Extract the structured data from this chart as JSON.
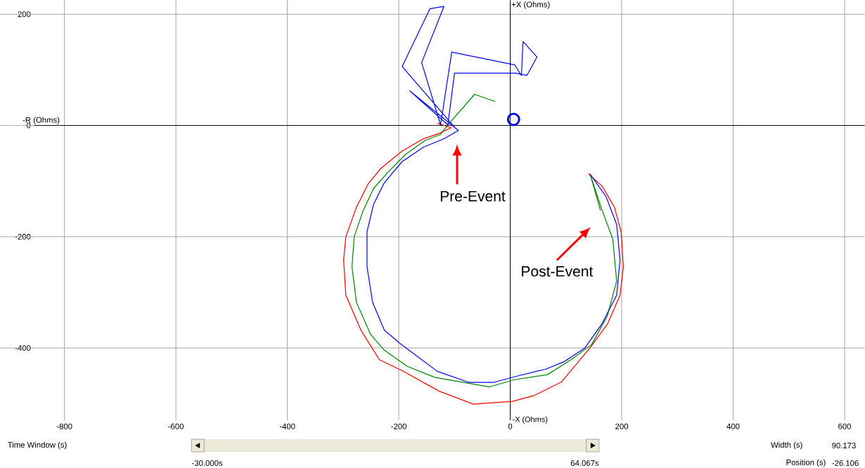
{
  "chart_data": {
    "type": "line",
    "xlim": [
      -915,
      636
    ],
    "ylim": [
      -530,
      225
    ],
    "xticks": [
      -800,
      -600,
      -400,
      -200,
      0,
      200,
      400,
      600
    ],
    "yticks": [
      -400,
      -200,
      0,
      200
    ],
    "grid": true,
    "series": [
      {
        "color": "#ff0000",
        "x": [
          -131,
          -106,
          -127,
          -156,
          -194,
          -232,
          -255,
          -276,
          -295,
          -299,
          -295,
          -268,
          -235,
          -194,
          -127,
          -66,
          4,
          42,
          92,
          143,
          175,
          197,
          203,
          199,
          187,
          165,
          140
        ],
        "values": [
          4,
          -4,
          -14,
          -24,
          -46,
          -77,
          -105,
          -147,
          -200,
          -242,
          -305,
          -368,
          -421,
          -441,
          -478,
          -501,
          -496,
          -486,
          -461,
          -400,
          -356,
          -305,
          -254,
          -191,
          -147,
          -109,
          -87
        ]
      },
      {
        "color": "#008000",
        "x": [
          -27,
          -64,
          -112,
          -125,
          -153,
          -188,
          -222,
          -245,
          -264,
          -280,
          -284,
          -276,
          -251,
          -226,
          -185,
          -135,
          -37,
          8,
          67,
          112,
          146,
          174,
          191,
          184,
          165,
          144,
          162
        ],
        "values": [
          43,
          56,
          1,
          -16,
          -27,
          -52,
          -87,
          -113,
          -153,
          -200,
          -254,
          -318,
          -375,
          -404,
          -433,
          -453,
          -470,
          -457,
          -448,
          -419,
          -394,
          -343,
          -280,
          -204,
          -153,
          -90,
          -153
        ]
      },
      {
        "color": "#0000ff",
        "x": [
          -100,
          -194,
          -144,
          -119,
          -159,
          -125,
          -105,
          8,
          20,
          23,
          48,
          30,
          10,
          -100,
          -112,
          -180,
          -93,
          -119,
          -156,
          -194,
          -226,
          -245,
          -257,
          -257,
          -247,
          -226,
          -199,
          -131,
          -74,
          -30,
          11,
          64,
          96,
          134,
          165,
          191,
          197,
          191,
          172,
          143
        ],
        "values": [
          -3,
          106,
          210,
          214,
          113,
          1,
          132,
          109,
          90,
          151,
          123,
          90,
          94,
          94,
          1,
          62,
          -9,
          -24,
          -39,
          -65,
          -103,
          -141,
          -191,
          -254,
          -318,
          -368,
          -391,
          -442,
          -462,
          -462,
          -451,
          -438,
          -425,
          -400,
          -356,
          -305,
          -242,
          -178,
          -128,
          -87
        ]
      },
      {
        "type": "scatter",
        "marker": "circle",
        "color": "#0000ff",
        "x": [
          6
        ],
        "values": [
          11
        ]
      }
    ],
    "xlabel": "-R (Ohms)",
    "ylabel": "+X (Ohms)",
    "annotations": [
      "-X (Ohms)",
      "Pre-Event",
      "Post-Event",
      "Time Window (s)",
      "-30.000s",
      "64.067s",
      "Width (s)",
      "90.173",
      "Position (s)",
      "-26.106"
    ]
  }
}
